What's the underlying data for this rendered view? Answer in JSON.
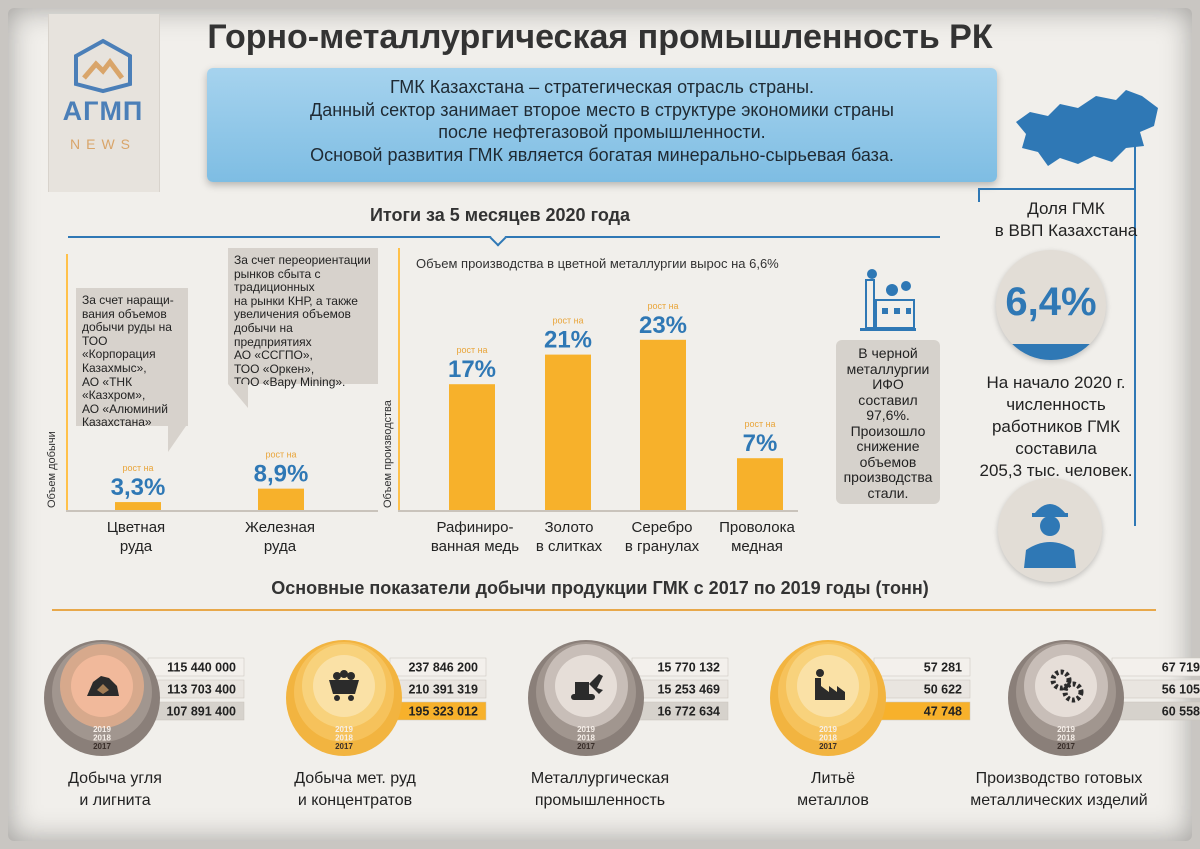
{
  "colors": {
    "orange": "#f7b12b",
    "blue": "#2f78b5",
    "brown": "#7b6f69",
    "gray_panel": "#d7d2cc"
  },
  "logo": {
    "name": "АГМП",
    "sub": "NEWS"
  },
  "title": "Горно-металлургическая промышленность РК",
  "intro": "ГМК Казахстана – стратегическая отрасль страны.\nДанный сектор занимает второе место в структуре экономики страны\nпосле нефтегазовой промышленности.\nОсновой развития ГМК является богатая минерально-сырьевая база.",
  "section1_title": "Итоги за 5 месяцев 2020 года",
  "callouts": {
    "ore": "За счет наращи-\nвания объемов\nдобычи руды на\nТОО «Корпорация\nКазахмыс»,\nАО «ТНК\n«Казхром»,\nАО «Алюминий\nКазахстана»",
    "iron": "За счет переориентации\nрынков сбыта с\nтрадиционных\nна рынки КНР, а также\nувеличения объемов\nдобычи на предприятиях\nАО «ССГПО»,\nТОО «Оркен»,\nТОО «Вару Mining»."
  },
  "chart_data": [
    {
      "type": "bar",
      "ylabel": "Объем добычи",
      "categories": [
        "Цветная\nруда",
        "Железная\nруда"
      ],
      "values": [
        3.3,
        8.9
      ],
      "data_labels": [
        "3,3%",
        "8,9%"
      ],
      "bar_note": "рост на"
    },
    {
      "type": "bar",
      "title": "Объем производства в цветной металлургии вырос на 6,6%",
      "ylabel": "Объем производства",
      "categories": [
        "Рафиниро-\nванная медь",
        "Золото\nв слитках",
        "Серебро\nв гранулах",
        "Проволока\nмедная"
      ],
      "values": [
        17,
        21,
        23,
        7
      ],
      "data_labels": [
        "17%",
        "21%",
        "23%",
        "7%"
      ],
      "bar_note": "рост на"
    },
    {
      "type": "table",
      "title": "Основные показатели добычи продукции ГМК с 2017 по 2019 годы (тонн)",
      "years": [
        "2019",
        "2018",
        "2017"
      ],
      "series": [
        {
          "name": "Добыча угля\nи лигнита",
          "icon": "coal-icon",
          "values": [
            "115 440 000",
            "113 703 400",
            "107 891 400"
          ]
        },
        {
          "name": "Добыча мет. руд\nи концентратов",
          "icon": "ore-cart-icon",
          "values": [
            "237 846 200",
            "210 391 319",
            "195 323 012"
          ]
        },
        {
          "name": "Металлургическая\nпромышленность",
          "icon": "excavator-icon",
          "values": [
            "15 770 132",
            "15 253 469",
            "16 772 634"
          ]
        },
        {
          "name": "Литьё\nметаллов",
          "icon": "factory-icon",
          "values": [
            "57 281",
            "50 622",
            "47 748"
          ]
        },
        {
          "name": "Производство готовых\nметаллических изделий",
          "icon": "gears-icon",
          "values": [
            "67 719",
            "56 105",
            "60 558"
          ]
        }
      ]
    }
  ],
  "black_metallurgy": "В черной\nметаллургии\nИФО\nсоставил\n97,6%.\nПроизошло\nснижение\nобъемов\nпроизводства\nстали.",
  "black_metallurgy_value": "97,6%.",
  "gdp_label": "Доля ГМК\nв ВВП Казахстана",
  "gdp_value": "6,4%",
  "workers": "На начало 2020 г.\nчисленность\nработников ГМК\nсоставила\n205,3 тыс. человек."
}
